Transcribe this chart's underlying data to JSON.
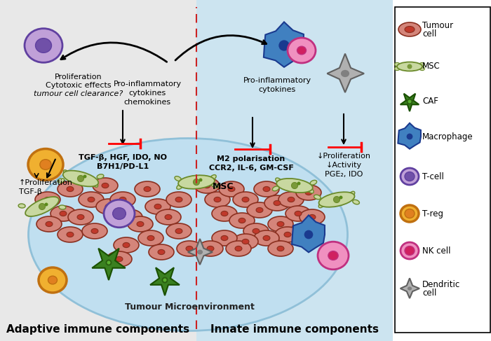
{
  "bg_left": "#e8e8e8",
  "bg_right": "#cce4f0",
  "tmb_fill": "#c0dff0",
  "tmb_edge": "#90c0d8",
  "dash_color": "#cc2222",
  "title_adaptive": "Adaptive immune components",
  "title_innate": "Innate immune components",
  "tmb_label": "Tumour Microenvironment",
  "msc_label": "MSC",
  "text_prolif": "Proliferation",
  "text_cyto": "Cytotoxic effects",
  "text_clearance": "tumour cell clearance?",
  "text_pro_inflam_chem": "Pro-inflammatory\ncytokines\nchemokines",
  "text_pro_inflam_right": "Pro-inflammatory\ncytokines",
  "text_tgfb": "TGF-β, HGF, IDO, NO\nB7H1/PD-L1",
  "text_m2": "M2 polarisation\nCCR2, IL-6, GM-CSF",
  "text_treg": "↑Proliferation\nTGF-β",
  "text_nk": "↓Proliferation\n↓Activity\nPGE₂, IDO",
  "tumour_outer": "#d4857a",
  "tumour_inner": "#c0392b",
  "tumour_edge": "#8b3020",
  "msc_fill": "#c8d8a0",
  "msc_nuc": "#7a9a3a",
  "msc_edge": "#6a8a2a",
  "msc_dot": "#5a8a1a",
  "caf_fill": "#3a8020",
  "caf_edge": "#1a5000",
  "caf_nuc": "#2a6010",
  "macro_fill": "#4080c0",
  "macro_edge": "#1a3a8f",
  "macro_nuc": "#1a3a8f",
  "tcell_fill": "#c0a0d8",
  "tcell_edge": "#6040a0",
  "tcell_nuc": "#7050a8",
  "treg_fill": "#f0b030",
  "treg_edge": "#c07010",
  "treg_nuc": "#e08020",
  "nk_fill": "#f090c0",
  "nk_edge": "#c03080",
  "nk_nuc": "#d02060",
  "dendrite_fill": "#b0b0b0",
  "dendrite_edge": "#606060",
  "dendrite_nuc": "#808080"
}
